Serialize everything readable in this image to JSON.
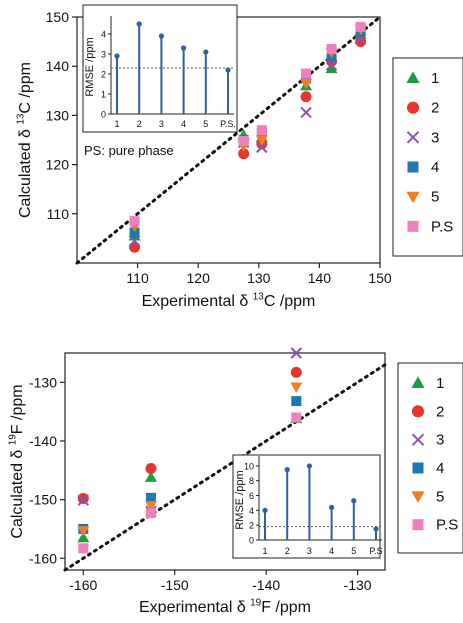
{
  "chart_data": [
    {
      "type": "scatter",
      "xlabel": "Experimental δ 13C /ppm",
      "ylabel": "Calculated δ 13C /ppm",
      "xlim": [
        100,
        150
      ],
      "ylim": [
        100,
        150
      ],
      "x_ticks": [
        110,
        120,
        130,
        140,
        150
      ],
      "y_ticks": [
        110,
        120,
        130,
        140,
        150
      ],
      "x_tick_labels": [
        "110",
        "120",
        "130",
        "140",
        "150"
      ],
      "y_tick_labels": [
        "110",
        "120",
        "130",
        "140",
        "150"
      ],
      "diagonal": true,
      "legend": {
        "placement": "right",
        "entries": [
          "1",
          "2",
          "3",
          "4",
          "5",
          "P.S"
        ]
      },
      "series": [
        {
          "name": "1",
          "color": "#1a9e3f",
          "marker": "triangle-up",
          "points": [
            [
              109.5,
              105.5
            ],
            [
              127.5,
              126.0
            ],
            [
              130.5,
              125.5
            ],
            [
              137.8,
              136.0
            ],
            [
              142.0,
              139.5
            ],
            [
              146.8,
              146.5
            ]
          ]
        },
        {
          "name": "2",
          "color": "#e8342e",
          "marker": "circle",
          "points": [
            [
              109.5,
              103.2
            ],
            [
              127.5,
              122.2
            ],
            [
              130.5,
              124.2
            ],
            [
              137.8,
              133.8
            ],
            [
              142.0,
              141.0
            ],
            [
              146.8,
              145.0
            ]
          ]
        },
        {
          "name": "3",
          "color": "#8a57a8",
          "marker": "x",
          "points": [
            [
              109.5,
              104.5
            ],
            [
              127.5,
              124.5
            ],
            [
              130.5,
              123.5
            ],
            [
              137.8,
              130.6
            ],
            [
              142.0,
              140.2
            ],
            [
              146.8,
              145.5
            ]
          ]
        },
        {
          "name": "4",
          "color": "#1f77b4",
          "marker": "square",
          "points": [
            [
              109.5,
              106.2
            ],
            [
              127.5,
              125.0
            ],
            [
              130.5,
              126.5
            ],
            [
              137.8,
              137.5
            ],
            [
              142.0,
              142.0
            ],
            [
              146.8,
              147.0
            ]
          ]
        },
        {
          "name": "5",
          "color": "#f47c20",
          "marker": "triangle-down",
          "points": [
            [
              109.5,
              107.5
            ],
            [
              127.5,
              123.8
            ],
            [
              130.5,
              125.0
            ],
            [
              137.8,
              136.5
            ],
            [
              142.0,
              142.8
            ],
            [
              146.8,
              147.5
            ]
          ]
        },
        {
          "name": "P.S",
          "color": "#ef7fbf",
          "marker": "square",
          "points": [
            [
              109.5,
              108.5
            ],
            [
              127.5,
              124.8
            ],
            [
              130.5,
              127.0
            ],
            [
              137.8,
              138.5
            ],
            [
              142.0,
              143.5
            ],
            [
              146.8,
              148.0
            ]
          ]
        }
      ],
      "inset": {
        "type": "stem",
        "ylabel": "RMSE /ppm",
        "categories": [
          "1",
          "2",
          "3",
          "4",
          "5",
          "P.S."
        ],
        "values": [
          2.9,
          4.5,
          3.9,
          3.3,
          3.1,
          2.2
        ],
        "ylim": [
          0,
          4.7
        ],
        "y_ticks": [
          0,
          1,
          2,
          3,
          4
        ],
        "y_tick_labels": [
          "0",
          "1",
          "2",
          "3",
          "4"
        ],
        "reference_line": 2.3,
        "annotation": "PS: pure phase"
      }
    },
    {
      "type": "scatter",
      "xlabel": "Experimental δ 19F /ppm",
      "ylabel": "Calculated δ 19F /ppm",
      "xlim": [
        -162,
        -127
      ],
      "ylim": [
        -162,
        -125
      ],
      "x_ticks": [
        -160,
        -150,
        -140,
        -130
      ],
      "y_ticks": [
        -160,
        -150,
        -140,
        -130
      ],
      "x_tick_labels": [
        "-160",
        "-150",
        "-140",
        "-130"
      ],
      "y_tick_labels": [
        "-160",
        "-150",
        "-140",
        "-130"
      ],
      "diagonal": true,
      "legend": {
        "placement": "right",
        "entries": [
          "1",
          "2",
          "3",
          "4",
          "5",
          "P.S"
        ]
      },
      "series": [
        {
          "name": "1",
          "color": "#1a9e3f",
          "marker": "triangle-up",
          "points": [
            [
              -160.0,
              -156.5
            ],
            [
              -152.6,
              -146.2
            ],
            [
              -136.7,
              -136.2
            ]
          ]
        },
        {
          "name": "2",
          "color": "#e8342e",
          "marker": "circle",
          "points": [
            [
              -160.0,
              -149.8
            ],
            [
              -152.6,
              -144.7
            ],
            [
              -136.7,
              -128.3
            ]
          ]
        },
        {
          "name": "3",
          "color": "#8a57a8",
          "marker": "x",
          "points": [
            [
              -160.0,
              -150.1
            ],
            [
              -152.6,
              -152.0
            ],
            [
              -136.7,
              -125.0
            ]
          ]
        },
        {
          "name": "4",
          "color": "#1f77b4",
          "marker": "square",
          "points": [
            [
              -160.0,
              -155.0
            ],
            [
              -152.6,
              -149.7
            ],
            [
              -136.7,
              -133.2
            ]
          ]
        },
        {
          "name": "5",
          "color": "#f47c20",
          "marker": "triangle-down",
          "points": [
            [
              -160.0,
              -155.3
            ],
            [
              -152.6,
              -151.0
            ],
            [
              -136.7,
              -130.8
            ]
          ]
        },
        {
          "name": "P.S",
          "color": "#ef7fbf",
          "marker": "square",
          "points": [
            [
              -160.0,
              -158.3
            ],
            [
              -152.6,
              -152.3
            ],
            [
              -136.7,
              -136.0
            ]
          ]
        }
      ],
      "inset": {
        "type": "stem",
        "ylabel": "RMSE /ppm",
        "categories": [
          "1",
          "2",
          "3",
          "4",
          "5",
          "P.S"
        ],
        "values": [
          4.0,
          9.5,
          10.0,
          4.4,
          5.3,
          1.5
        ],
        "ylim": [
          0,
          10.8
        ],
        "y_ticks": [
          0,
          2,
          4,
          6,
          8,
          10
        ],
        "y_tick_labels": [
          "0",
          "2",
          "4",
          "6",
          "8",
          "10"
        ],
        "reference_line": 1.8
      }
    }
  ]
}
